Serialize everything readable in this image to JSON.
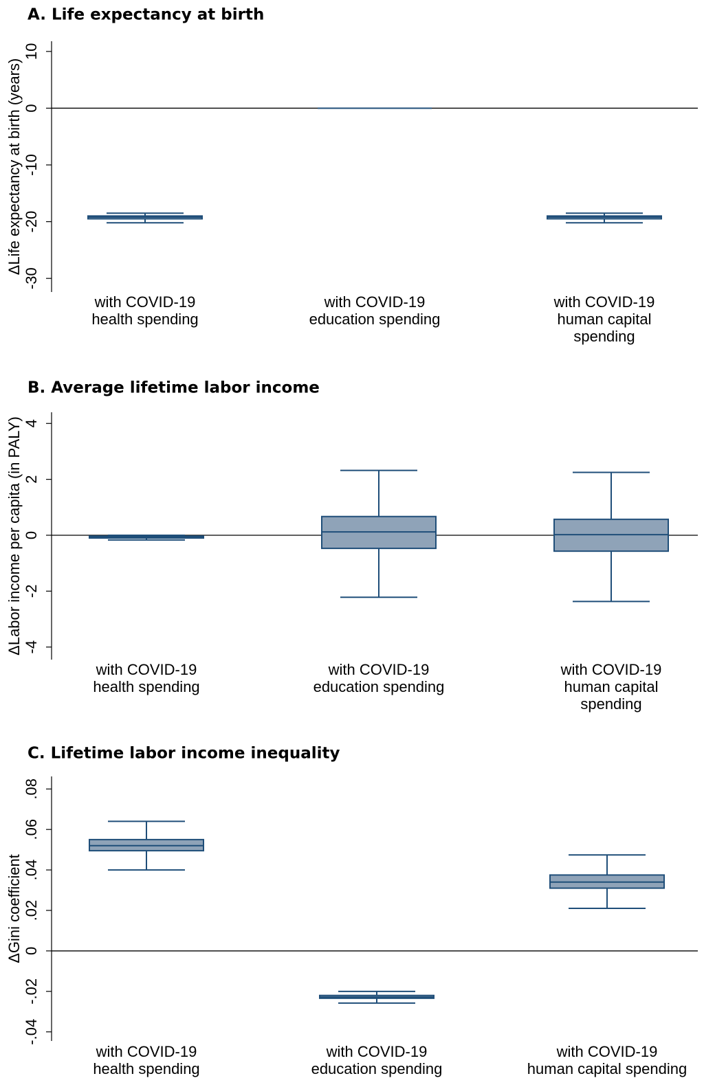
{
  "chart_data": [
    {
      "type": "box",
      "title": "A.  Life expectancy at birth",
      "y_label": "ΔLife expectancy at birth (years)",
      "categories": [
        [
          "with COVID-19",
          "health spending"
        ],
        [
          "with COVID-19",
          "education spending"
        ],
        [
          "with COVID-19",
          "human capital",
          "spending"
        ]
      ],
      "fill": "#8fa3b8",
      "color": "#1f4e79",
      "reference_line": 0,
      "ylim": [
        -32.4,
        11.8
      ],
      "yticks": [
        10,
        0,
        -10,
        -20,
        -30
      ],
      "boxes": [
        {
          "min": -20.2,
          "q1": -19.5,
          "median": -19.2,
          "q3": -19.0,
          "max": -18.5
        },
        {
          "min": 0,
          "q1": 0,
          "median": 0,
          "q3": 0,
          "max": 0
        },
        {
          "min": -20.2,
          "q1": -19.5,
          "median": -19.2,
          "q3": -19.0,
          "max": -18.5
        }
      ]
    },
    {
      "type": "box",
      "title": "B.  Average lifetime labor income",
      "y_label": "ΔLabor income per capita (in PALY)",
      "categories": [
        [
          "with COVID-19",
          "health spending"
        ],
        [
          "with COVID-19",
          "education spending"
        ],
        [
          "with COVID-19",
          "human capital",
          "spending"
        ]
      ],
      "fill": "#8fa3b8",
      "color": "#1f4e79",
      "reference_line": 0,
      "ylim": [
        -4.45,
        4.4
      ],
      "yticks": [
        4,
        2,
        0,
        -2,
        -4
      ],
      "boxes": [
        {
          "min": -0.17,
          "q1": -0.1,
          "median": -0.06,
          "q3": -0.03,
          "max": 0.0
        },
        {
          "min": -2.22,
          "q1": -0.47,
          "median": 0.12,
          "q3": 0.67,
          "max": 2.32
        },
        {
          "min": -2.37,
          "q1": -0.57,
          "median": 0.02,
          "q3": 0.57,
          "max": 2.25
        }
      ]
    },
    {
      "type": "box",
      "title": "C.  Lifetime labor income inequality",
      "y_label": "ΔGini coefficient",
      "categories": [
        [
          "with COVID-19",
          "health spending"
        ],
        [
          "with COVID-19",
          "education spending"
        ],
        [
          "with COVID-19",
          "human capital spending"
        ]
      ],
      "fill": "#8fa3b8",
      "color": "#1f4e79",
      "reference_line": 0,
      "ylim": [
        -0.0445,
        0.0862
      ],
      "yticks": [
        {
          "value": 0.08,
          "label": ".08"
        },
        {
          "value": 0.06,
          "label": ".06"
        },
        {
          "value": 0.04,
          "label": ".04"
        },
        {
          "value": 0.02,
          "label": ".02"
        },
        0,
        {
          "value": -0.02,
          "label": "-.02"
        },
        {
          "value": -0.04,
          "label": "-.04"
        }
      ],
      "boxes": [
        {
          "min": 0.04,
          "q1": 0.0495,
          "median": 0.052,
          "q3": 0.055,
          "max": 0.064
        },
        {
          "min": -0.0258,
          "q1": -0.0234,
          "median": -0.0228,
          "q3": -0.022,
          "max": -0.02
        },
        {
          "min": 0.021,
          "q1": 0.031,
          "median": 0.034,
          "q3": 0.0375,
          "max": 0.0474
        }
      ]
    }
  ]
}
